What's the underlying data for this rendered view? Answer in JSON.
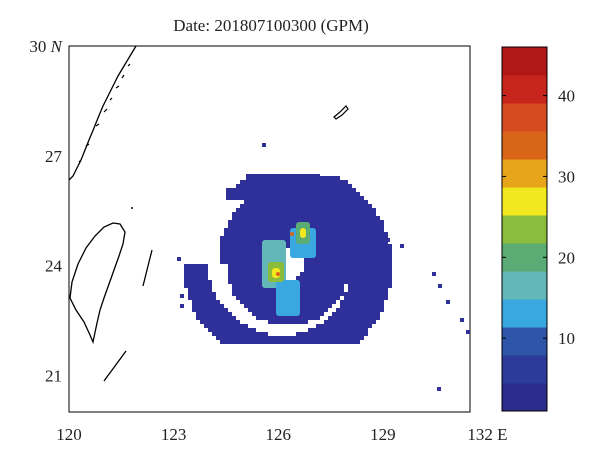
{
  "title": "Date: 201807100300 (GPM)",
  "x_ticks": [
    {
      "value": 120,
      "label": "120"
    },
    {
      "value": 123,
      "label": "123"
    },
    {
      "value": 126,
      "label": "126"
    },
    {
      "value": 129,
      "label": "129"
    },
    {
      "value": 132,
      "label": "132 E"
    }
  ],
  "y_ticks": [
    {
      "value": 30,
      "label": "30 N"
    },
    {
      "value": 27,
      "label": "27"
    },
    {
      "value": 24,
      "label": "24"
    },
    {
      "value": 21,
      "label": "21"
    }
  ],
  "map_extent": {
    "lon": [
      120,
      131.5
    ],
    "lat": [
      20,
      30
    ]
  },
  "colorbar": {
    "range": [
      1,
      46
    ],
    "ticks": [
      {
        "value": 10,
        "label": "10"
      },
      {
        "value": 20,
        "label": "20"
      },
      {
        "value": 30,
        "label": "30"
      },
      {
        "value": 40,
        "label": "40"
      }
    ],
    "colors": [
      "#2b2a8d",
      "#2c3a99",
      "#2f55a8",
      "#39a7e0",
      "#63b7b8",
      "#5aab74",
      "#8cbc3b",
      "#f2e81f",
      "#e7a51b",
      "#d96519",
      "#d54a1f",
      "#c7241b",
      "#b11717"
    ]
  },
  "colors": {
    "land_outline": "#000000",
    "rain_base": "#2f2f9a",
    "frame": "#000000"
  }
}
